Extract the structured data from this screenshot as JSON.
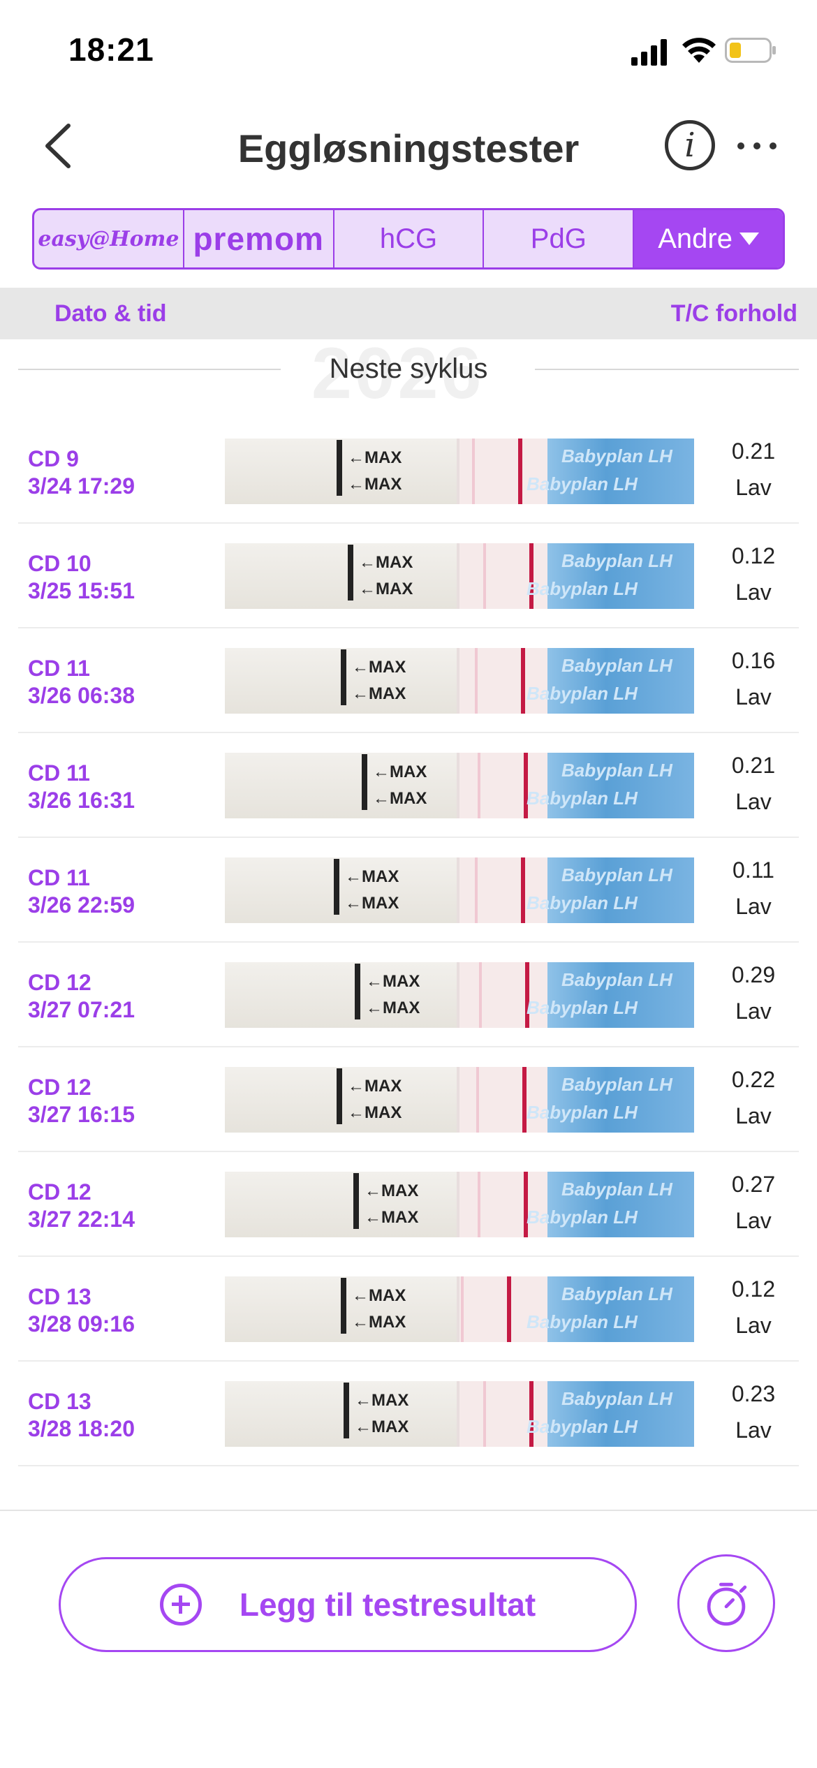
{
  "status": {
    "time": "18:21"
  },
  "header": {
    "title": "Eggløsningstester",
    "info_glyph": "i"
  },
  "tabs": [
    {
      "label": "easy@Home",
      "active": false
    },
    {
      "label": "premom",
      "active": false
    },
    {
      "label": "hCG",
      "active": false
    },
    {
      "label": "PdG",
      "active": false
    },
    {
      "label": "Andre",
      "active": true
    }
  ],
  "columns": {
    "left": "Dato & tid",
    "right": "T/C forhold"
  },
  "cycle": {
    "year": "2026",
    "label": "Neste syklus"
  },
  "strip_text": {
    "max": "←MAX",
    "brand": "Babyplan LH"
  },
  "rows": [
    {
      "cd": "CD 9",
      "datetime": "3/24 17:29",
      "ratio": "0.21",
      "level": "Lav"
    },
    {
      "cd": "CD 10",
      "datetime": "3/25 15:51",
      "ratio": "0.12",
      "level": "Lav"
    },
    {
      "cd": "CD 11",
      "datetime": "3/26 06:38",
      "ratio": "0.16",
      "level": "Lav"
    },
    {
      "cd": "CD 11",
      "datetime": "3/26 16:31",
      "ratio": "0.21",
      "level": "Lav"
    },
    {
      "cd": "CD 11",
      "datetime": "3/26 22:59",
      "ratio": "0.11",
      "level": "Lav"
    },
    {
      "cd": "CD 12",
      "datetime": "3/27 07:21",
      "ratio": "0.29",
      "level": "Lav"
    },
    {
      "cd": "CD 12",
      "datetime": "3/27 16:15",
      "ratio": "0.22",
      "level": "Lav"
    },
    {
      "cd": "CD 12",
      "datetime": "3/27 22:14",
      "ratio": "0.27",
      "level": "Lav"
    },
    {
      "cd": "CD 13",
      "datetime": "3/28 09:16",
      "ratio": "0.12",
      "level": "Lav"
    },
    {
      "cd": "CD 13",
      "datetime": "3/28 18:20",
      "ratio": "0.23",
      "level": "Lav"
    }
  ],
  "actions": {
    "add_label": "Legg til testresultat"
  },
  "colors": {
    "accent": "#a547f2",
    "accent_light": "#ecdcfb",
    "control_line": "#c41a44"
  }
}
